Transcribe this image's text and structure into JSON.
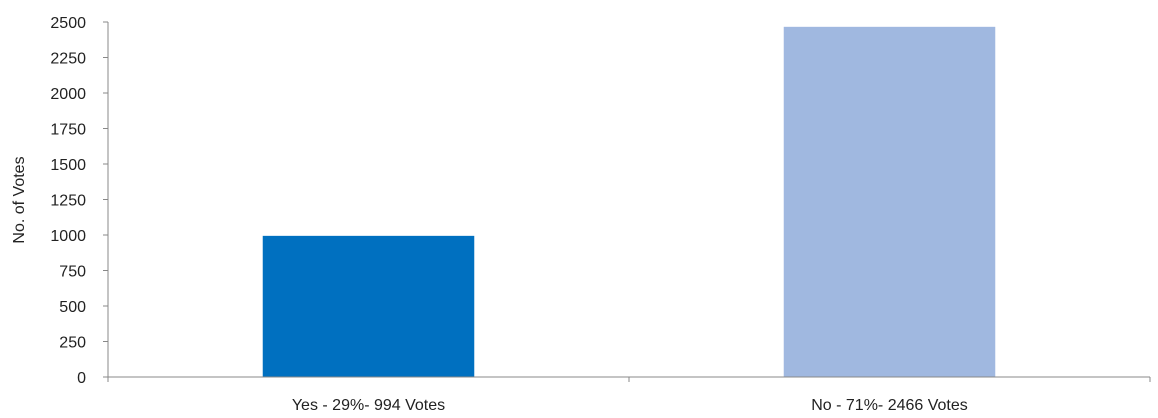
{
  "chart_data": {
    "type": "bar",
    "title": "",
    "xlabel": "",
    "ylabel": "No. of Votes",
    "ylim": [
      0,
      2500
    ],
    "yticks": [
      0,
      250,
      500,
      750,
      1000,
      1250,
      1500,
      1750,
      2000,
      2250,
      2500
    ],
    "categories": [
      "Yes - 29%- 994 Votes",
      "No - 71%- 2466 Votes"
    ],
    "values": [
      994,
      2466
    ],
    "bar_colors": [
      "#0070c0",
      "#a0b8e0"
    ],
    "grid": false,
    "legend": "none"
  }
}
